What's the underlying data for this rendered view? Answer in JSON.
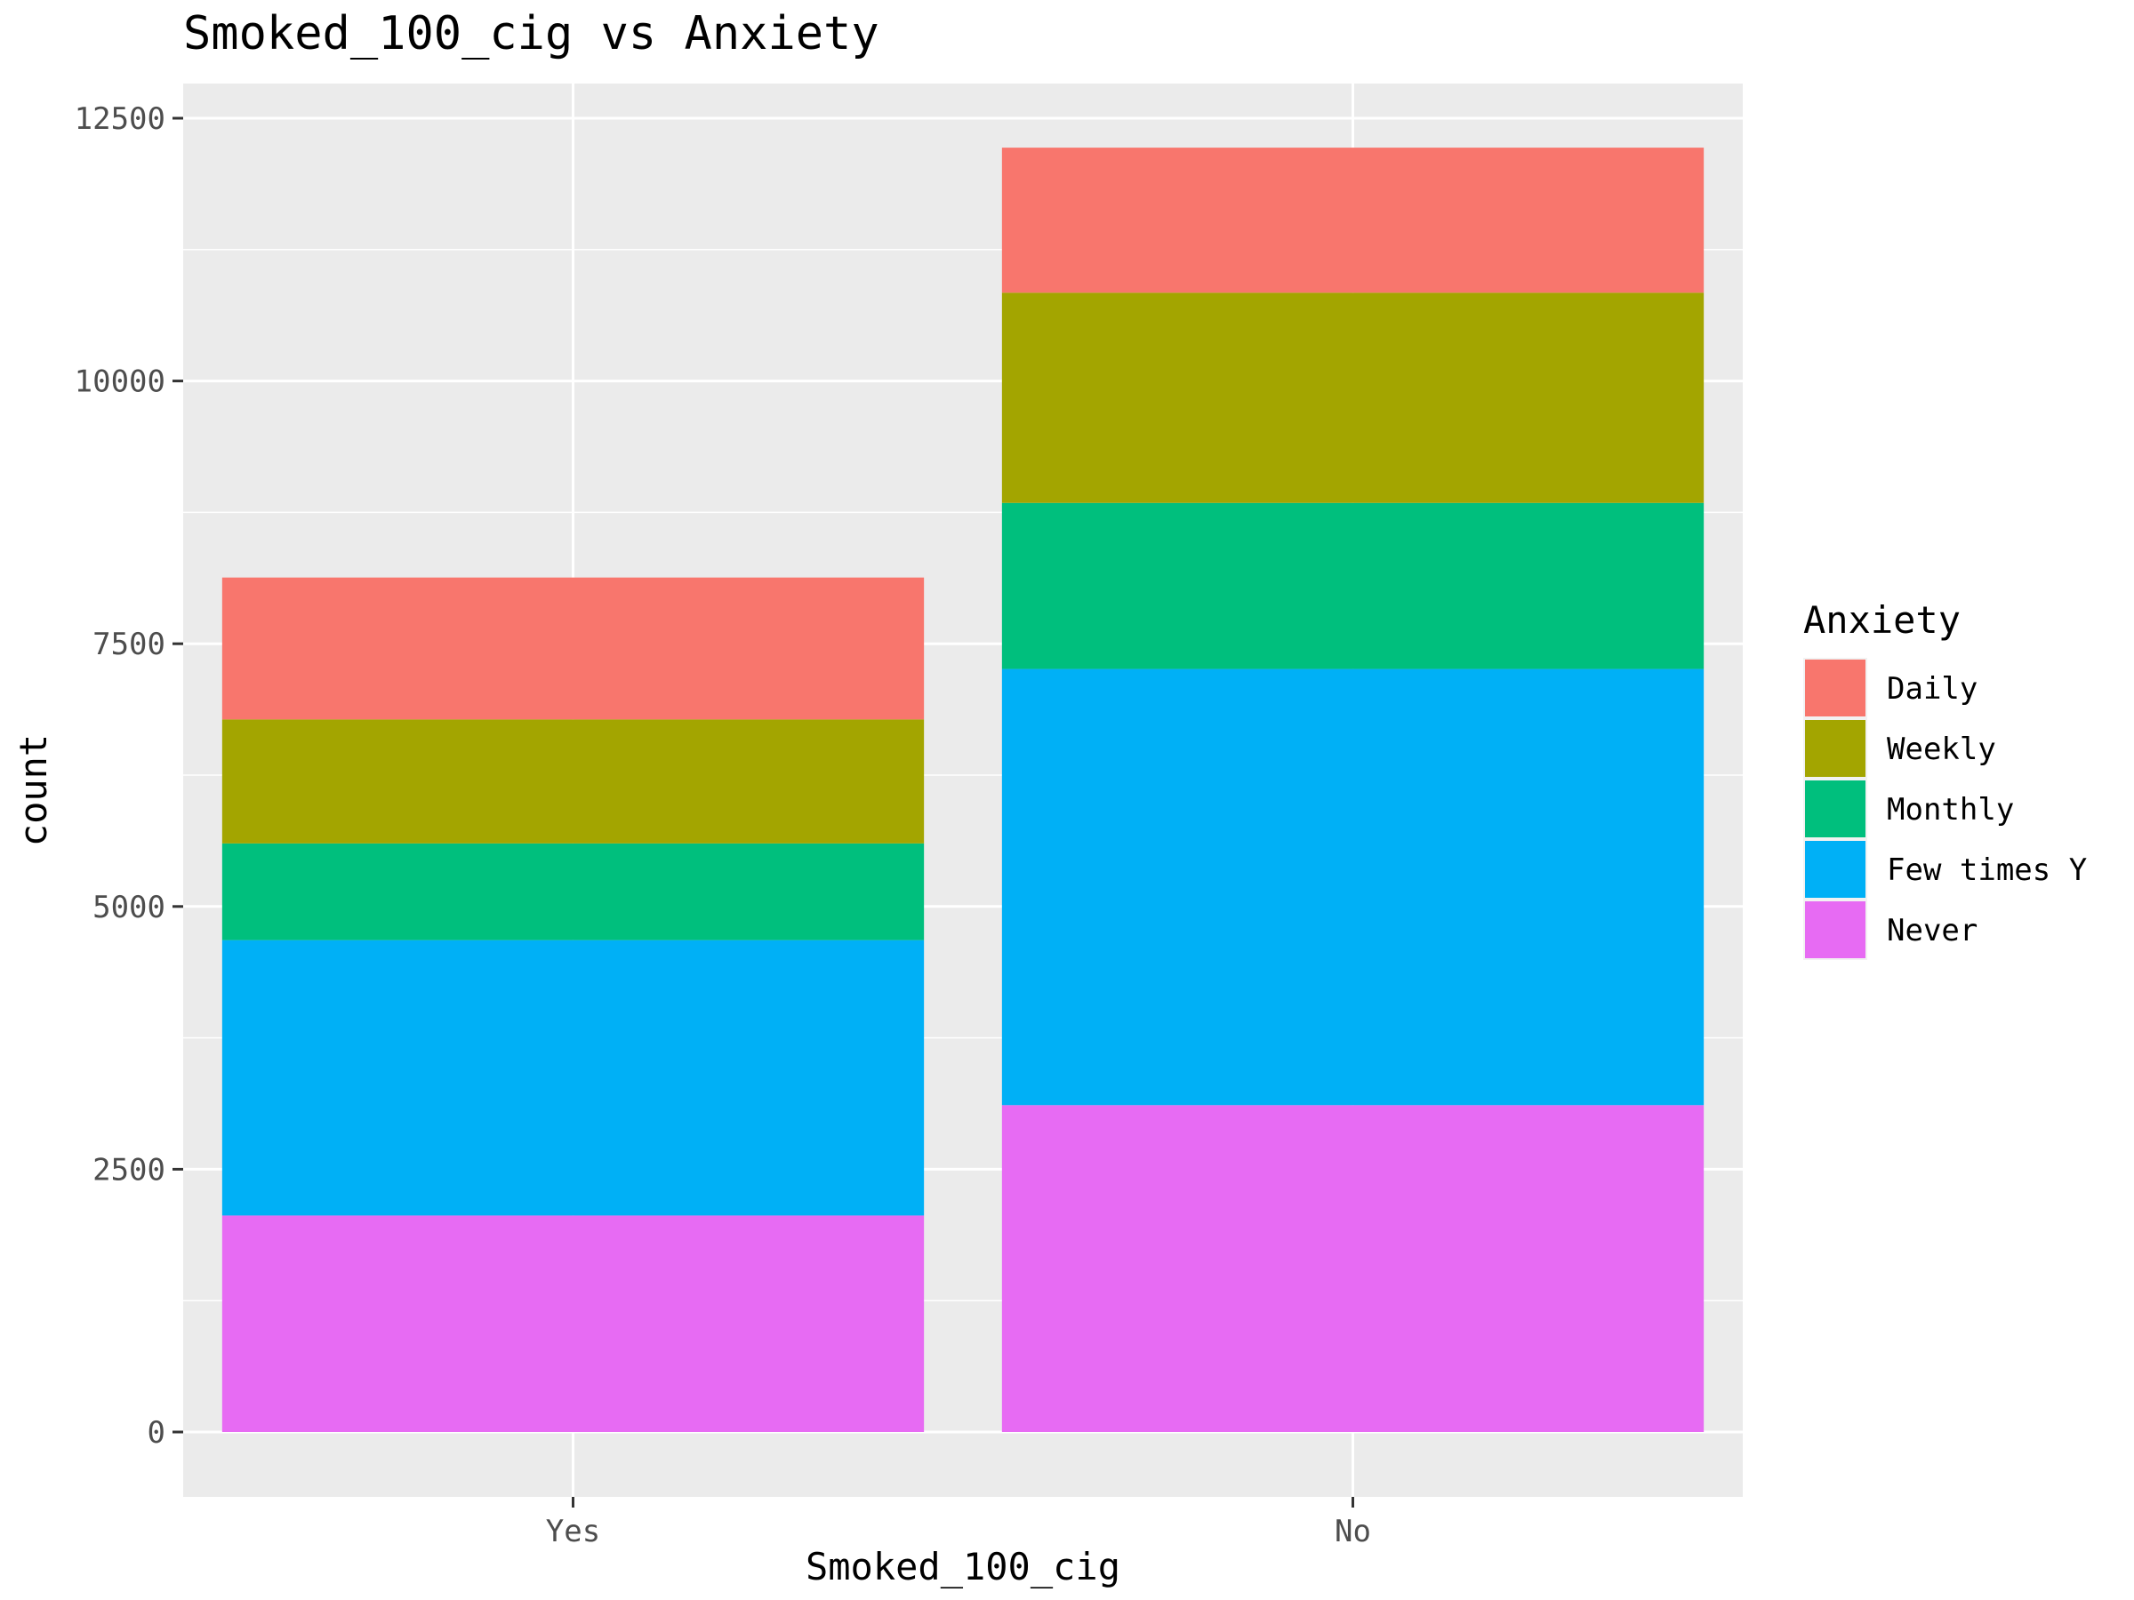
{
  "chart_data": {
    "type": "bar",
    "stacked": true,
    "title": "Smoked_100_cig vs Anxiety",
    "xlabel": "Smoked_100_cig",
    "ylabel": "count",
    "categories": [
      "Yes",
      "No"
    ],
    "ylim": [
      0,
      12800
    ],
    "y_ticks": [
      0,
      2500,
      5000,
      7500,
      10000,
      12500
    ],
    "y_tick_labels": [
      "0",
      "2500",
      "5000",
      "7500",
      "10000",
      "12500"
    ],
    "grid": true,
    "legend": {
      "title": "Anxiety",
      "position": "right"
    },
    "series": [
      {
        "name": "Daily",
        "color": "#F8766D",
        "values": [
          1350,
          1380
        ]
      },
      {
        "name": "Weekly",
        "color": "#A3A500",
        "values": [
          1180,
          2000
        ]
      },
      {
        "name": "Monthly",
        "color": "#00BF7D",
        "values": [
          920,
          1580
        ]
      },
      {
        "name": "Few times Y",
        "color": "#00B0F6",
        "values": [
          2620,
          4150
        ]
      },
      {
        "name": "Never",
        "color": "#E76BF3",
        "values": [
          2060,
          3110
        ]
      }
    ]
  }
}
